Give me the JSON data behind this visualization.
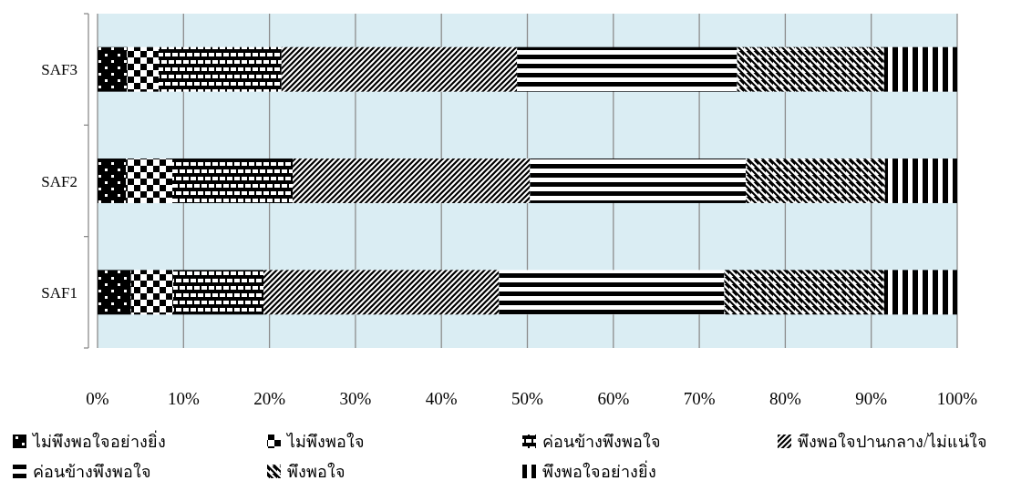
{
  "chart_data": {
    "type": "bar",
    "orientation": "horizontal",
    "stacked": true,
    "categories": [
      "SAF3",
      "SAF2",
      "SAF1"
    ],
    "series": [
      {
        "name": "ไม่พึงพอใจอย่างยิ่ง",
        "color": "#000000",
        "values": [
          3.4,
          3.3,
          3.9
        ]
      },
      {
        "name": "ไม่พึงพอใจ",
        "color": "#000000",
        "values": [
          3.7,
          5.4,
          4.9
        ]
      },
      {
        "name": "ค่อนข้างพึงพอใจ",
        "color": "#000000",
        "values": [
          14.3,
          14.0,
          10.5
        ]
      },
      {
        "name": "พึงพอใจปานกลาง/ไม่แน่ใจ",
        "color": "#000000",
        "values": [
          27.4,
          27.6,
          27.4
        ]
      },
      {
        "name": "ค่อนข้างพึงพอใจ",
        "color": "#000000",
        "values": [
          25.6,
          25.1,
          26.2
        ]
      },
      {
        "name": "พึงพอใจ",
        "color": "#000000",
        "values": [
          17.1,
          16.2,
          18.6
        ]
      },
      {
        "name": "พึงพอใจอย่างยิ่ง",
        "color": "#000000",
        "values": [
          8.5,
          8.4,
          8.5
        ]
      }
    ],
    "xlim": [
      0,
      100
    ],
    "xticks": [
      {
        "value": 0,
        "label": "0%"
      },
      {
        "value": 10,
        "label": "10%"
      },
      {
        "value": 20,
        "label": "20%"
      },
      {
        "value": 30,
        "label": "30%"
      },
      {
        "value": 40,
        "label": "40%"
      },
      {
        "value": 50,
        "label": "50%"
      },
      {
        "value": 60,
        "label": "60%"
      },
      {
        "value": 70,
        "label": "70%"
      },
      {
        "value": 80,
        "label": "80%"
      },
      {
        "value": 90,
        "label": "90%"
      },
      {
        "value": 100,
        "label": "100%"
      }
    ],
    "grid": "x",
    "legend": "bottom"
  }
}
